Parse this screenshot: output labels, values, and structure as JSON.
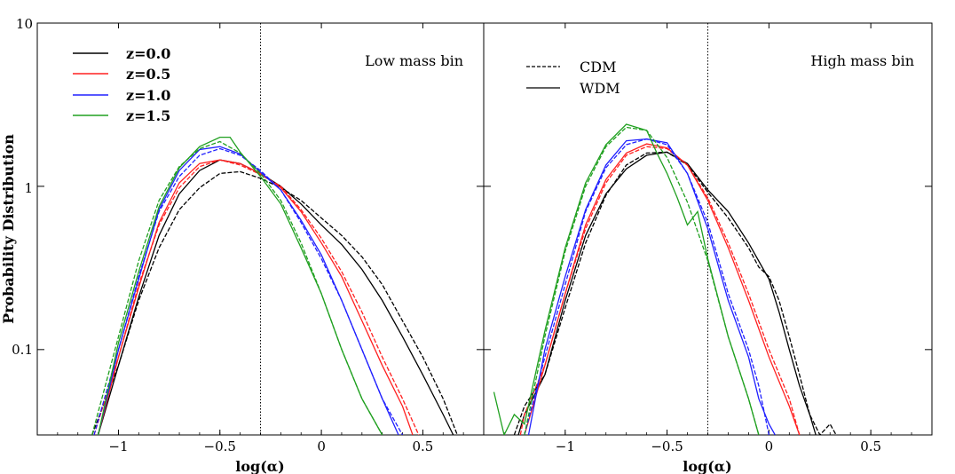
{
  "figure": {
    "ylabel": "Probability Distribution",
    "colors": {
      "z0": "#000000",
      "z05": "#ff2020",
      "z10": "#2020ff",
      "z15": "#20a020"
    }
  },
  "legend_z": [
    {
      "label": "z=0.0",
      "color": "#000000"
    },
    {
      "label": "z=0.5",
      "color": "#ff2020"
    },
    {
      "label": "z=1.0",
      "color": "#2020ff"
    },
    {
      "label": "z=1.5",
      "color": "#20a020"
    }
  ],
  "legend_model": [
    {
      "label": "CDM",
      "style": "dashed"
    },
    {
      "label": "WDM",
      "style": "solid"
    }
  ],
  "chart_data": [
    {
      "type": "line",
      "title": "Low mass bin",
      "xlabel": "log(α)",
      "ylabel": "Probability Distribution",
      "xlim": [
        -1.4,
        0.8
      ],
      "ylim": [
        0.03,
        10
      ],
      "yscale": "log",
      "xticks": [
        -1,
        -0.5,
        0,
        0.5
      ],
      "xtick_labels": [
        "−1",
        "−0.5",
        "0",
        "0.5"
      ],
      "yticks": [
        0.1,
        1,
        10
      ],
      "ytick_labels": [
        "0.1",
        "1",
        "10"
      ],
      "vline": -0.3,
      "series": [
        {
          "name": "z=0.0 CDM",
          "color": "#000000",
          "dash": true,
          "x": [
            -1.13,
            -1.0,
            -0.9,
            -0.8,
            -0.7,
            -0.6,
            -0.5,
            -0.4,
            -0.3,
            -0.2,
            -0.1,
            0.0,
            0.1,
            0.2,
            0.3,
            0.4,
            0.5,
            0.6,
            0.67
          ],
          "y": [
            0.03,
            0.08,
            0.2,
            0.42,
            0.72,
            0.98,
            1.2,
            1.23,
            1.12,
            0.98,
            0.82,
            0.64,
            0.5,
            0.37,
            0.25,
            0.15,
            0.09,
            0.05,
            0.03
          ]
        },
        {
          "name": "z=0.0 WDM",
          "color": "#000000",
          "dash": false,
          "x": [
            -1.1,
            -1.0,
            -0.9,
            -0.8,
            -0.7,
            -0.6,
            -0.5,
            -0.4,
            -0.3,
            -0.2,
            -0.1,
            0.0,
            0.1,
            0.2,
            0.3,
            0.4,
            0.5,
            0.6,
            0.65
          ],
          "y": [
            0.03,
            0.08,
            0.21,
            0.5,
            0.9,
            1.25,
            1.45,
            1.38,
            1.2,
            1.0,
            0.78,
            0.58,
            0.44,
            0.31,
            0.2,
            0.12,
            0.07,
            0.04,
            0.03
          ]
        },
        {
          "name": "z=0.5 CDM",
          "color": "#ff2020",
          "dash": true,
          "x": [
            -1.12,
            -1.0,
            -0.9,
            -0.8,
            -0.7,
            -0.6,
            -0.5,
            -0.4,
            -0.3,
            -0.2,
            -0.1,
            0.0,
            0.1,
            0.2,
            0.3,
            0.4,
            0.48
          ],
          "y": [
            0.03,
            0.09,
            0.25,
            0.58,
            0.98,
            1.32,
            1.45,
            1.35,
            1.18,
            1.0,
            0.72,
            0.48,
            0.3,
            0.17,
            0.09,
            0.05,
            0.03
          ]
        },
        {
          "name": "z=0.5 WDM",
          "color": "#ff2020",
          "dash": false,
          "x": [
            -1.1,
            -1.0,
            -0.9,
            -0.8,
            -0.7,
            -0.6,
            -0.5,
            -0.4,
            -0.3,
            -0.2,
            -0.1,
            0.0,
            0.1,
            0.2,
            0.3,
            0.4,
            0.45
          ],
          "y": [
            0.03,
            0.09,
            0.24,
            0.6,
            1.05,
            1.38,
            1.45,
            1.38,
            1.2,
            0.98,
            0.7,
            0.45,
            0.28,
            0.15,
            0.08,
            0.045,
            0.03
          ]
        },
        {
          "name": "z=1.0 CDM",
          "color": "#2020ff",
          "dash": true,
          "x": [
            -1.12,
            -1.0,
            -0.9,
            -0.8,
            -0.7,
            -0.6,
            -0.5,
            -0.4,
            -0.3,
            -0.2,
            -0.1,
            0.0,
            0.1,
            0.2,
            0.3,
            0.4
          ],
          "y": [
            0.03,
            0.1,
            0.28,
            0.7,
            1.15,
            1.55,
            1.7,
            1.55,
            1.25,
            0.95,
            0.6,
            0.36,
            0.2,
            0.1,
            0.05,
            0.03
          ]
        },
        {
          "name": "z=1.0 WDM",
          "color": "#2020ff",
          "dash": false,
          "x": [
            -1.1,
            -1.0,
            -0.9,
            -0.8,
            -0.7,
            -0.6,
            -0.5,
            -0.4,
            -0.3,
            -0.2,
            -0.1,
            0.0,
            0.1,
            0.2,
            0.3,
            0.38
          ],
          "y": [
            0.03,
            0.1,
            0.27,
            0.72,
            1.25,
            1.68,
            1.75,
            1.58,
            1.22,
            0.95,
            0.62,
            0.38,
            0.2,
            0.1,
            0.05,
            0.03
          ]
        },
        {
          "name": "z=1.5 CDM",
          "color": "#20a020",
          "dash": true,
          "x": [
            -1.13,
            -1.0,
            -0.9,
            -0.8,
            -0.7,
            -0.6,
            -0.5,
            -0.4,
            -0.3,
            -0.2,
            -0.1,
            0.0,
            0.1,
            0.2,
            0.3
          ],
          "y": [
            0.03,
            0.12,
            0.35,
            0.82,
            1.32,
            1.7,
            1.88,
            1.6,
            1.2,
            0.82,
            0.45,
            0.22,
            0.1,
            0.05,
            0.03
          ]
        },
        {
          "name": "z=1.5 WDM",
          "color": "#20a020",
          "dash": false,
          "x": [
            -1.1,
            -1.0,
            -0.9,
            -0.8,
            -0.7,
            -0.6,
            -0.5,
            -0.45,
            -0.4,
            -0.3,
            -0.2,
            -0.1,
            0.0,
            0.1,
            0.2,
            0.3
          ],
          "y": [
            0.03,
            0.11,
            0.3,
            0.75,
            1.3,
            1.75,
            2.0,
            2.0,
            1.62,
            1.15,
            0.78,
            0.42,
            0.22,
            0.1,
            0.05,
            0.03
          ]
        }
      ]
    },
    {
      "type": "line",
      "title": "High mass bin",
      "xlabel": "log(α)",
      "ylabel": "",
      "xlim": [
        -1.4,
        0.8
      ],
      "ylim": [
        0.03,
        10
      ],
      "yscale": "log",
      "xticks": [
        -1,
        -0.5,
        0,
        0.5
      ],
      "xtick_labels": [
        "−1",
        "−0.5",
        "0",
        "0.5"
      ],
      "yticks": [
        0.1,
        1,
        10
      ],
      "vline": -0.3,
      "series": [
        {
          "name": "z=0.0 CDM",
          "color": "#000000",
          "dash": true,
          "x": [
            -1.25,
            -1.2,
            -1.1,
            -1.0,
            -0.9,
            -0.8,
            -0.7,
            -0.6,
            -0.5,
            -0.4,
            -0.3,
            -0.2,
            -0.1,
            -0.05,
            0.0,
            0.05,
            0.1,
            0.15,
            0.2,
            0.25,
            0.3,
            0.33
          ],
          "y": [
            0.03,
            0.045,
            0.07,
            0.18,
            0.45,
            0.88,
            1.35,
            1.6,
            1.62,
            1.35,
            0.92,
            0.64,
            0.42,
            0.32,
            0.28,
            0.2,
            0.12,
            0.07,
            0.04,
            0.03,
            0.035,
            0.03
          ]
        },
        {
          "name": "z=0.0 WDM",
          "color": "#000000",
          "dash": false,
          "x": [
            -1.23,
            -1.2,
            -1.1,
            -1.0,
            -0.9,
            -0.8,
            -0.7,
            -0.6,
            -0.5,
            -0.4,
            -0.3,
            -0.2,
            -0.1,
            0.0,
            0.05,
            0.1,
            0.15,
            0.2,
            0.23
          ],
          "y": [
            0.03,
            0.04,
            0.07,
            0.2,
            0.5,
            0.9,
            1.28,
            1.55,
            1.62,
            1.38,
            0.95,
            0.7,
            0.45,
            0.27,
            0.17,
            0.1,
            0.06,
            0.04,
            0.03
          ]
        },
        {
          "name": "z=0.5 CDM",
          "color": "#ff2020",
          "dash": true,
          "x": [
            -1.22,
            -1.2,
            -1.1,
            -1.0,
            -0.9,
            -0.8,
            -0.7,
            -0.6,
            -0.5,
            -0.4,
            -0.3,
            -0.2,
            -0.1,
            0.0,
            0.1,
            0.15
          ],
          "y": [
            0.03,
            0.04,
            0.08,
            0.22,
            0.55,
            1.05,
            1.55,
            1.75,
            1.7,
            1.35,
            0.85,
            0.45,
            0.22,
            0.1,
            0.05,
            0.03
          ]
        },
        {
          "name": "z=0.5 WDM",
          "color": "#ff2020",
          "dash": false,
          "x": [
            -1.2,
            -1.1,
            -1.0,
            -0.9,
            -0.8,
            -0.7,
            -0.6,
            -0.5,
            -0.4,
            -0.3,
            -0.2,
            -0.1,
            0.0,
            0.1,
            0.15
          ],
          "y": [
            0.03,
            0.08,
            0.22,
            0.58,
            1.1,
            1.6,
            1.82,
            1.72,
            1.35,
            0.82,
            0.42,
            0.2,
            0.09,
            0.045,
            0.03
          ]
        },
        {
          "name": "z=1.0 CDM",
          "color": "#2020ff",
          "dash": true,
          "x": [
            -1.2,
            -1.1,
            -1.0,
            -0.9,
            -0.8,
            -0.7,
            -0.6,
            -0.5,
            -0.4,
            -0.3,
            -0.2,
            -0.1,
            -0.05,
            0.0
          ],
          "y": [
            0.03,
            0.09,
            0.25,
            0.7,
            1.3,
            1.8,
            1.95,
            1.8,
            1.2,
            0.6,
            0.22,
            0.1,
            0.06,
            0.03
          ]
        },
        {
          "name": "z=1.0 WDM",
          "color": "#2020ff",
          "dash": false,
          "x": [
            -1.18,
            -1.1,
            -1.0,
            -0.9,
            -0.8,
            -0.7,
            -0.6,
            -0.5,
            -0.4,
            -0.3,
            -0.2,
            -0.1,
            -0.05,
            0.0,
            0.03
          ],
          "y": [
            0.03,
            0.1,
            0.28,
            0.72,
            1.35,
            1.9,
            1.95,
            1.85,
            1.2,
            0.55,
            0.2,
            0.09,
            0.05,
            0.035,
            0.03
          ]
        },
        {
          "name": "z=1.5 CDM",
          "color": "#20a020",
          "dash": true,
          "x": [
            -1.2,
            -1.1,
            -1.0,
            -0.9,
            -0.8,
            -0.7,
            -0.6,
            -0.5,
            -0.4,
            -0.3,
            -0.2,
            -0.1,
            -0.05
          ],
          "y": [
            0.03,
            0.12,
            0.4,
            1.0,
            1.75,
            2.3,
            2.2,
            1.5,
            0.8,
            0.35,
            0.12,
            0.05,
            0.03
          ]
        },
        {
          "name": "z=1.5 WDM",
          "color": "#20a020",
          "dash": false,
          "x": [
            -1.35,
            -1.3,
            -1.25,
            -1.2,
            -1.1,
            -1.0,
            -0.9,
            -0.8,
            -0.7,
            -0.6,
            -0.55,
            -0.5,
            -0.45,
            -0.4,
            -0.35,
            -0.3,
            -0.2,
            -0.1,
            -0.05
          ],
          "y": [
            0.055,
            0.03,
            0.04,
            0.035,
            0.13,
            0.42,
            1.05,
            1.8,
            2.4,
            2.2,
            1.6,
            1.2,
            0.85,
            0.58,
            0.7,
            0.36,
            0.12,
            0.05,
            0.03
          ]
        }
      ]
    }
  ]
}
